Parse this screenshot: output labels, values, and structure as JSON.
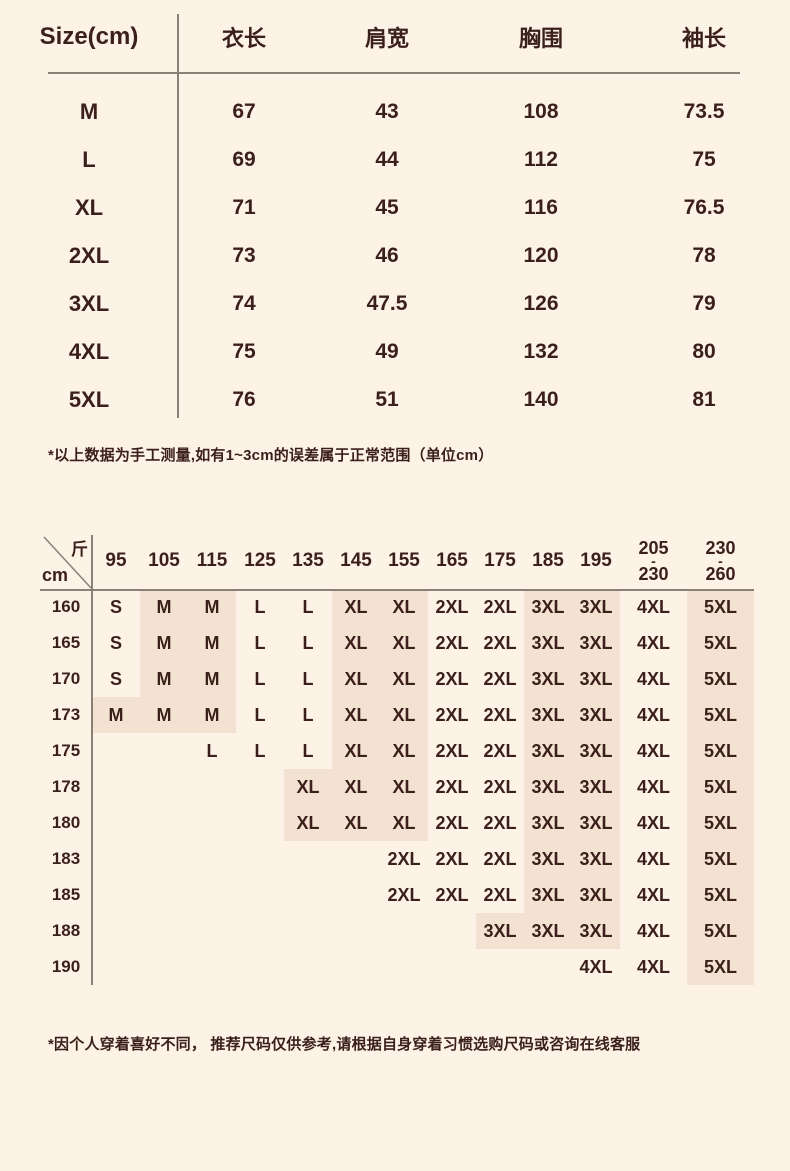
{
  "colors": {
    "background": "#fcf2e5",
    "cell_highlight": "#f3e2d1",
    "text": "#3b1f1a",
    "rule": "#8b8077"
  },
  "size_table": {
    "corner_label": "Size(cm)",
    "columns": [
      "衣长",
      "肩宽",
      "胸围",
      "袖长"
    ],
    "rows": [
      {
        "size": "M",
        "values": [
          "67",
          "43",
          "108",
          "73.5"
        ]
      },
      {
        "size": "L",
        "values": [
          "69",
          "44",
          "112",
          "75"
        ]
      },
      {
        "size": "XL",
        "values": [
          "71",
          "45",
          "116",
          "76.5"
        ]
      },
      {
        "size": "2XL",
        "values": [
          "73",
          "46",
          "120",
          "78"
        ]
      },
      {
        "size": "3XL",
        "values": [
          "74",
          "47.5",
          "126",
          "79"
        ]
      },
      {
        "size": "4XL",
        "values": [
          "75",
          "49",
          "132",
          "80"
        ]
      },
      {
        "size": "5XL",
        "values": [
          "76",
          "51",
          "140",
          "81"
        ]
      }
    ],
    "note": "*以上数据为手工测量,如有1~3cm的误差属于正常范围（单位cm）"
  },
  "fit_table": {
    "corner_top_label": "斤",
    "corner_bottom_label": "cm",
    "weight_columns": [
      "95",
      "105",
      "115",
      "125",
      "135",
      "145",
      "155",
      "165",
      "175",
      "185",
      "195",
      "205-230",
      "230-260"
    ],
    "highlighted_sizes": [
      "M",
      "XL",
      "3XL",
      "5XL"
    ],
    "rows": [
      {
        "height": "160",
        "cells": [
          "S",
          "M",
          "M",
          "L",
          "L",
          "XL",
          "XL",
          "2XL",
          "2XL",
          "3XL",
          "3XL",
          "4XL",
          "5XL"
        ]
      },
      {
        "height": "165",
        "cells": [
          "S",
          "M",
          "M",
          "L",
          "L",
          "XL",
          "XL",
          "2XL",
          "2XL",
          "3XL",
          "3XL",
          "4XL",
          "5XL"
        ]
      },
      {
        "height": "170",
        "cells": [
          "S",
          "M",
          "M",
          "L",
          "L",
          "XL",
          "XL",
          "2XL",
          "2XL",
          "3XL",
          "3XL",
          "4XL",
          "5XL"
        ]
      },
      {
        "height": "173",
        "cells": [
          "M",
          "M",
          "M",
          "L",
          "L",
          "XL",
          "XL",
          "2XL",
          "2XL",
          "3XL",
          "3XL",
          "4XL",
          "5XL"
        ]
      },
      {
        "height": "175",
        "cells": [
          "",
          "",
          "L",
          "L",
          "L",
          "XL",
          "XL",
          "2XL",
          "2XL",
          "3XL",
          "3XL",
          "4XL",
          "5XL"
        ]
      },
      {
        "height": "178",
        "cells": [
          "",
          "",
          "",
          "",
          "XL",
          "XL",
          "XL",
          "2XL",
          "2XL",
          "3XL",
          "3XL",
          "4XL",
          "5XL"
        ]
      },
      {
        "height": "180",
        "cells": [
          "",
          "",
          "",
          "",
          "XL",
          "XL",
          "XL",
          "2XL",
          "2XL",
          "3XL",
          "3XL",
          "4XL",
          "5XL"
        ]
      },
      {
        "height": "183",
        "cells": [
          "",
          "",
          "",
          "",
          "",
          "",
          "2XL",
          "2XL",
          "2XL",
          "3XL",
          "3XL",
          "4XL",
          "5XL"
        ]
      },
      {
        "height": "185",
        "cells": [
          "",
          "",
          "",
          "",
          "",
          "",
          "2XL",
          "2XL",
          "2XL",
          "3XL",
          "3XL",
          "4XL",
          "5XL"
        ]
      },
      {
        "height": "188",
        "cells": [
          "",
          "",
          "",
          "",
          "",
          "",
          "",
          "",
          "3XL",
          "3XL",
          "3XL",
          "4XL",
          "5XL"
        ]
      },
      {
        "height": "190",
        "cells": [
          "",
          "",
          "",
          "",
          "",
          "",
          "",
          "",
          "",
          "",
          "4XL",
          "4XL",
          "5XL"
        ]
      }
    ],
    "note": "*因个人穿着喜好不同， 推荐尺码仅供参考,请根据自身穿着习惯选购尺码或咨询在线客服"
  }
}
